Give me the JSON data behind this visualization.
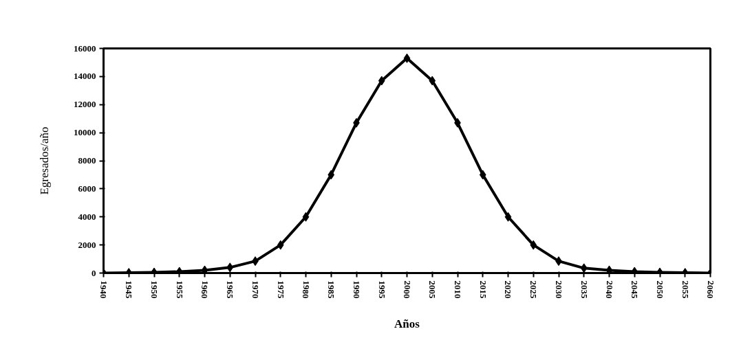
{
  "chart_data": {
    "type": "line",
    "xlabel": "Años",
    "ylabel": "Egresados/año",
    "x": [
      1940,
      1945,
      1950,
      1955,
      1960,
      1965,
      1970,
      1975,
      1980,
      1985,
      1990,
      1995,
      2000,
      2005,
      2010,
      2015,
      2020,
      2025,
      2030,
      2035,
      2040,
      2045,
      2050,
      2055,
      2060
    ],
    "series": [
      {
        "color": "#000000",
        "values": [
          0,
          20,
          50,
          100,
          200,
          400,
          850,
          2000,
          4000,
          7000,
          10700,
          13700,
          15300,
          13700,
          10700,
          7000,
          4000,
          2000,
          850,
          350,
          200,
          100,
          50,
          20,
          0
        ]
      }
    ],
    "xlim": [
      1940,
      2060
    ],
    "xticks": [
      1940,
      1945,
      1950,
      1955,
      1960,
      1965,
      1970,
      1975,
      1980,
      1985,
      1990,
      1995,
      2000,
      2005,
      2010,
      2015,
      2020,
      2025,
      2030,
      2035,
      2040,
      2045,
      2050,
      2055,
      2060
    ],
    "ylim": [
      0,
      16000
    ],
    "yticks": [
      0,
      2000,
      4000,
      6000,
      8000,
      10000,
      12000,
      14000,
      16000
    ],
    "grid": false,
    "marker": "diamond",
    "line_style": "solid"
  }
}
